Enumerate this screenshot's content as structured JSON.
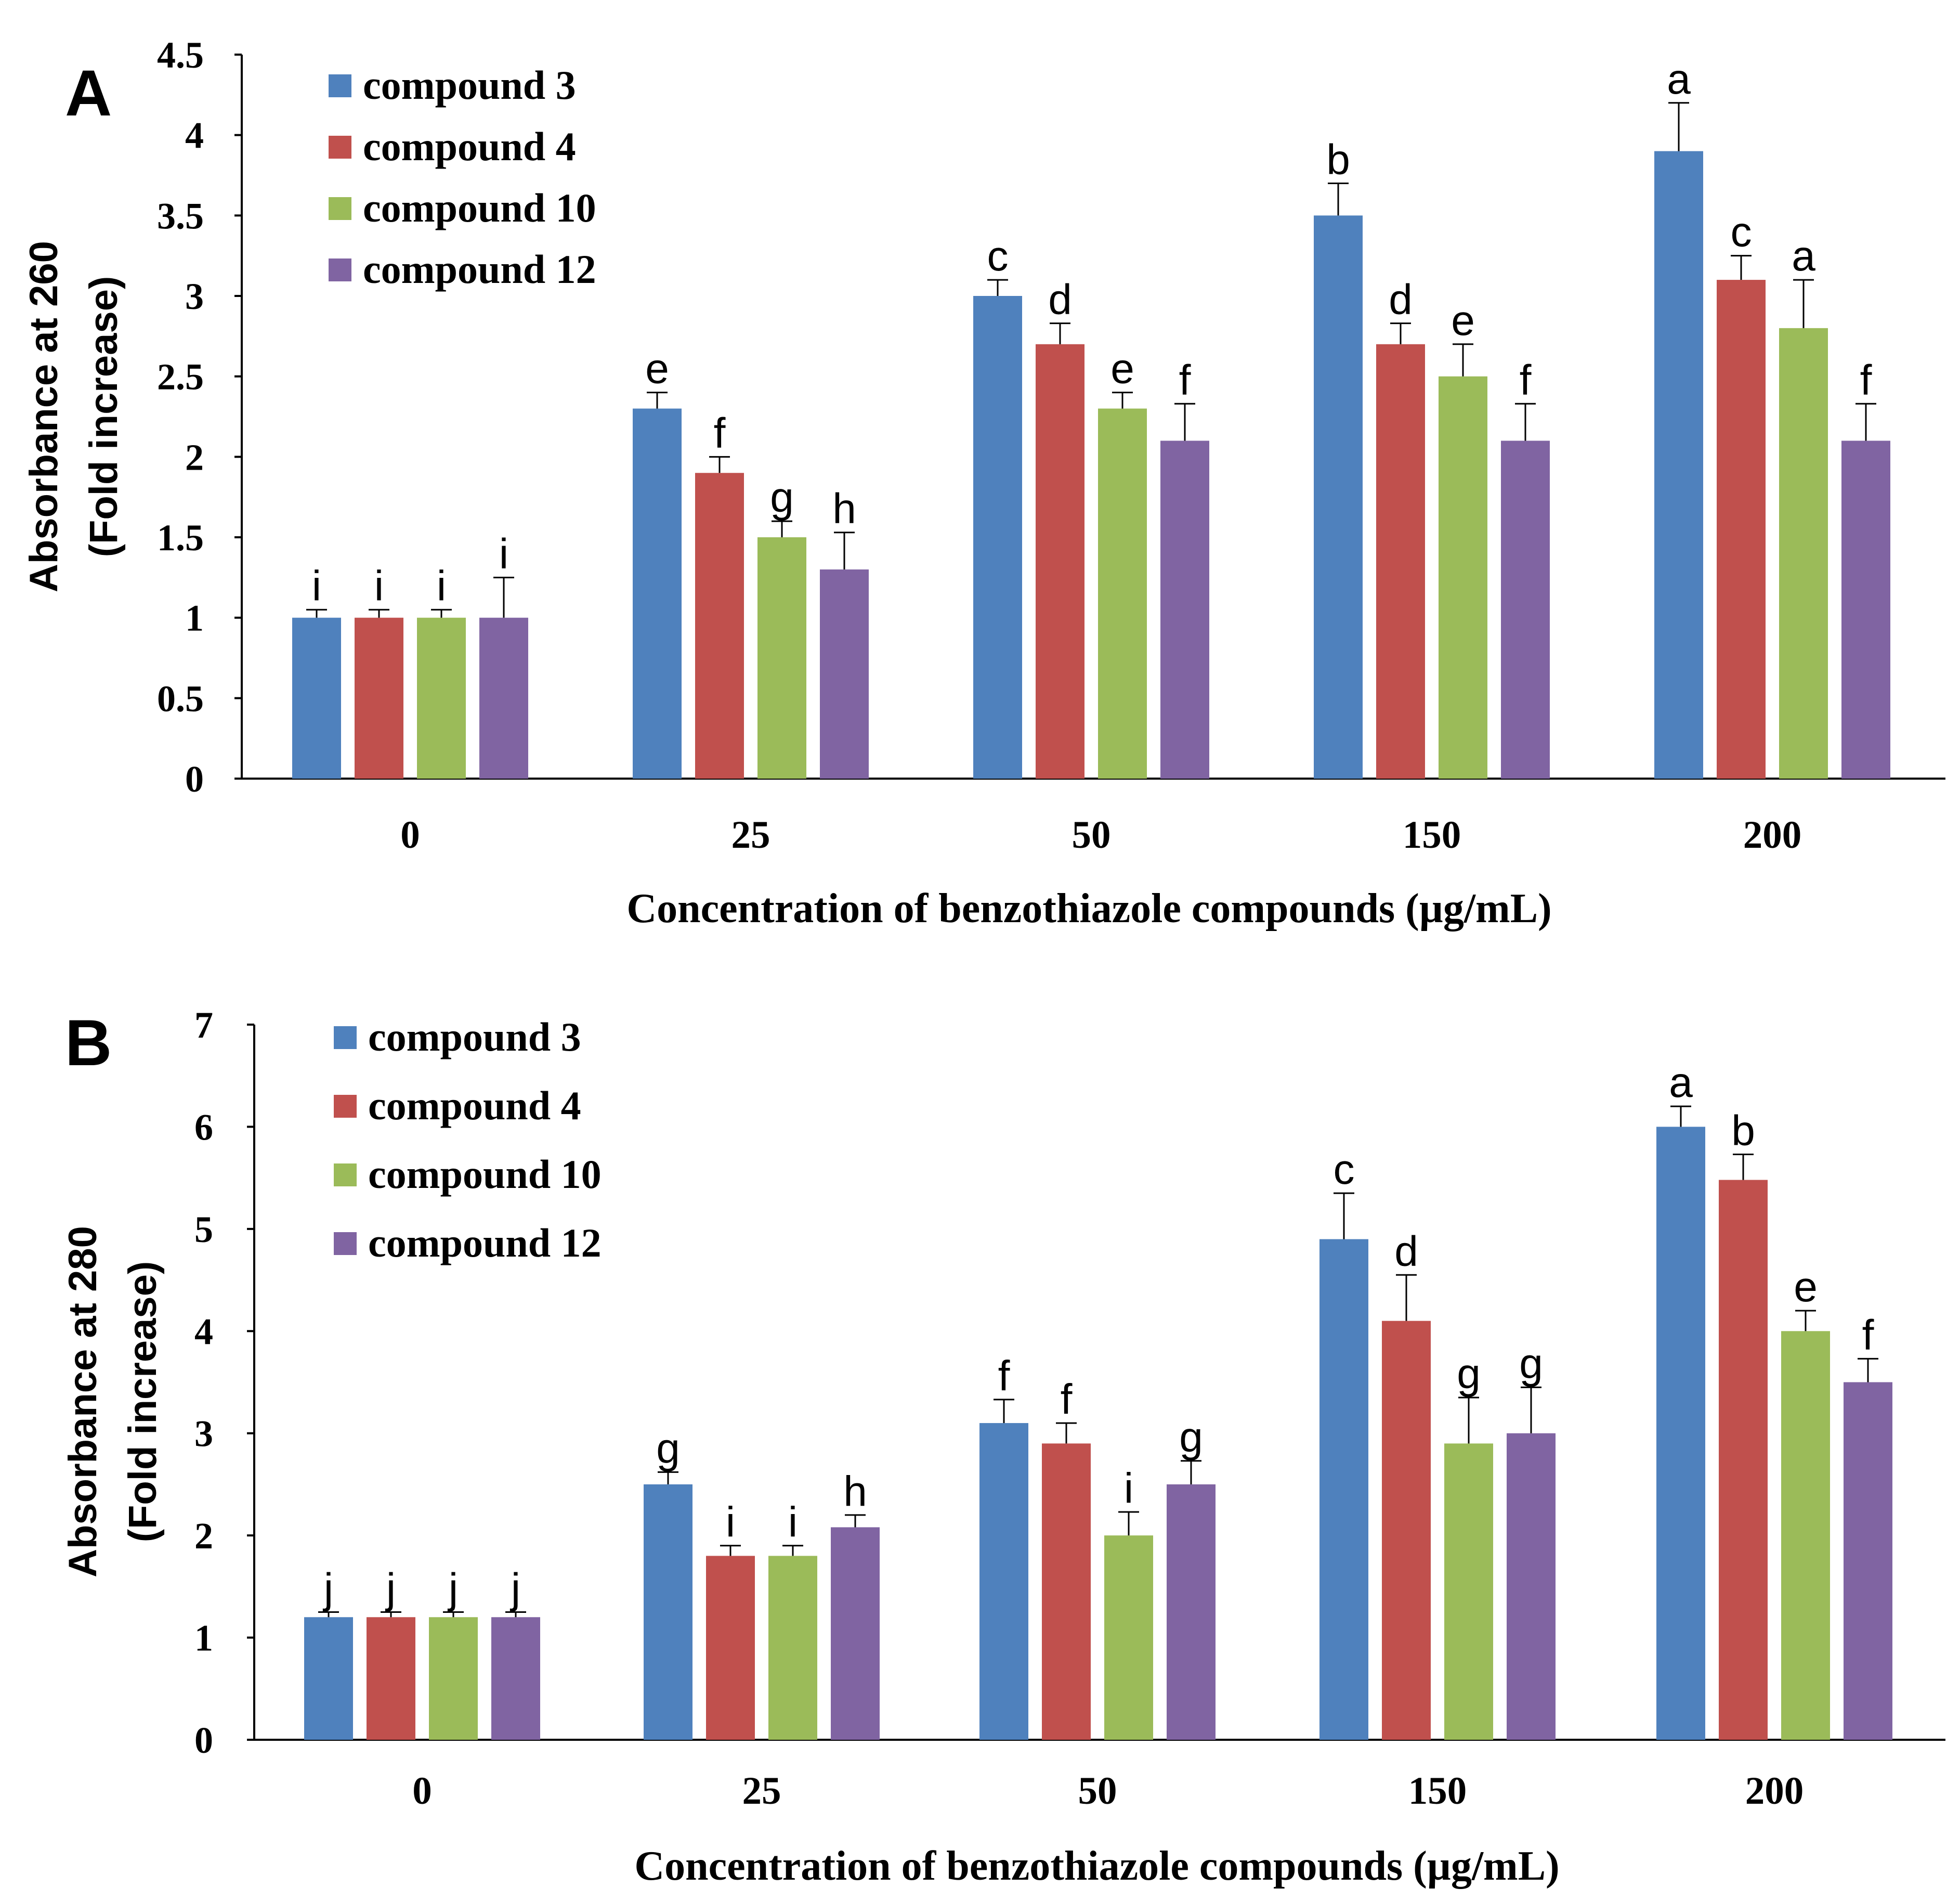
{
  "colors": {
    "compound_3": "#4F81BD",
    "compound_4": "#C0504D",
    "compound_10": "#9BBB59",
    "compound_12": "#8064A2",
    "axis": "#000000"
  },
  "chart_data": [
    {
      "type": "bar",
      "panel": "A",
      "xlabel": "Concentration of benzothiazole compounds (µg/mL)",
      "ylabel": [
        "Absorbance at 260",
        "(Fold increase)"
      ],
      "ylim": [
        0,
        4.5
      ],
      "yticks": [
        "0",
        "0.5",
        "1",
        "1.5",
        "2",
        "2.5",
        "3",
        "3.5",
        "4",
        "4.5"
      ],
      "categories": [
        "0",
        "25",
        "50",
        "150",
        "200"
      ],
      "legend_position": "top-left",
      "series": [
        {
          "name": "compound 3",
          "color_key": "compound_3",
          "values": [
            1.0,
            2.3,
            3.0,
            3.5,
            3.9
          ],
          "errors": [
            0.05,
            0.1,
            0.1,
            0.2,
            0.3
          ],
          "letters": [
            "i",
            "e",
            "c",
            "b",
            "a"
          ]
        },
        {
          "name": "compound 4",
          "color_key": "compound_4",
          "values": [
            1.0,
            1.9,
            2.7,
            2.7,
            3.1
          ],
          "errors": [
            0.05,
            0.1,
            0.13,
            0.13,
            0.15
          ],
          "letters": [
            "i",
            "f",
            "d",
            "d",
            "c"
          ]
        },
        {
          "name": "compound 10",
          "color_key": "compound_10",
          "values": [
            1.0,
            1.5,
            2.3,
            2.5,
            2.8
          ],
          "errors": [
            0.05,
            0.1,
            0.1,
            0.2,
            0.3
          ],
          "letters": [
            "i",
            "g",
            "e",
            "e",
            "a"
          ]
        },
        {
          "name": "compound 12",
          "color_key": "compound_12",
          "values": [
            1.0,
            1.3,
            2.1,
            2.1,
            2.1
          ],
          "errors": [
            0.25,
            0.23,
            0.23,
            0.23,
            0.23
          ],
          "letters": [
            "i",
            "h",
            "f",
            "f",
            "f"
          ]
        }
      ]
    },
    {
      "type": "bar",
      "panel": "B",
      "xlabel": "Concentration of benzothiazole compounds (µg/mL)",
      "ylabel": [
        "Absorbance at 280",
        "(Fold increase)"
      ],
      "ylim": [
        0,
        7
      ],
      "yticks": [
        "0",
        "1",
        "2",
        "3",
        "4",
        "5",
        "6",
        "7"
      ],
      "categories": [
        "0",
        "25",
        "50",
        "150",
        "200"
      ],
      "legend_position": "top-left",
      "series": [
        {
          "name": "compound 3",
          "color_key": "compound_3",
          "values": [
            1.2,
            2.5,
            3.1,
            4.9,
            6.0
          ],
          "errors": [
            0.05,
            0.12,
            0.23,
            0.45,
            0.2
          ],
          "letters": [
            "j",
            "g",
            "f",
            "c",
            "a"
          ]
        },
        {
          "name": "compound 4",
          "color_key": "compound_4",
          "values": [
            1.2,
            1.8,
            2.9,
            4.1,
            5.48
          ],
          "errors": [
            0.05,
            0.1,
            0.2,
            0.45,
            0.25
          ],
          "letters": [
            "j",
            "i",
            "f",
            "d",
            "b"
          ]
        },
        {
          "name": "compound 10",
          "color_key": "compound_10",
          "values": [
            1.2,
            1.8,
            2.0,
            2.9,
            4.0
          ],
          "errors": [
            0.05,
            0.1,
            0.23,
            0.45,
            0.2
          ],
          "letters": [
            "j",
            "i",
            "i",
            "g",
            "e"
          ]
        },
        {
          "name": "compound 12",
          "color_key": "compound_12",
          "values": [
            1.2,
            2.08,
            2.5,
            3.0,
            3.5
          ],
          "errors": [
            0.05,
            0.12,
            0.23,
            0.45,
            0.23
          ],
          "letters": [
            "j",
            "h",
            "g",
            "g",
            "f"
          ]
        }
      ]
    }
  ]
}
